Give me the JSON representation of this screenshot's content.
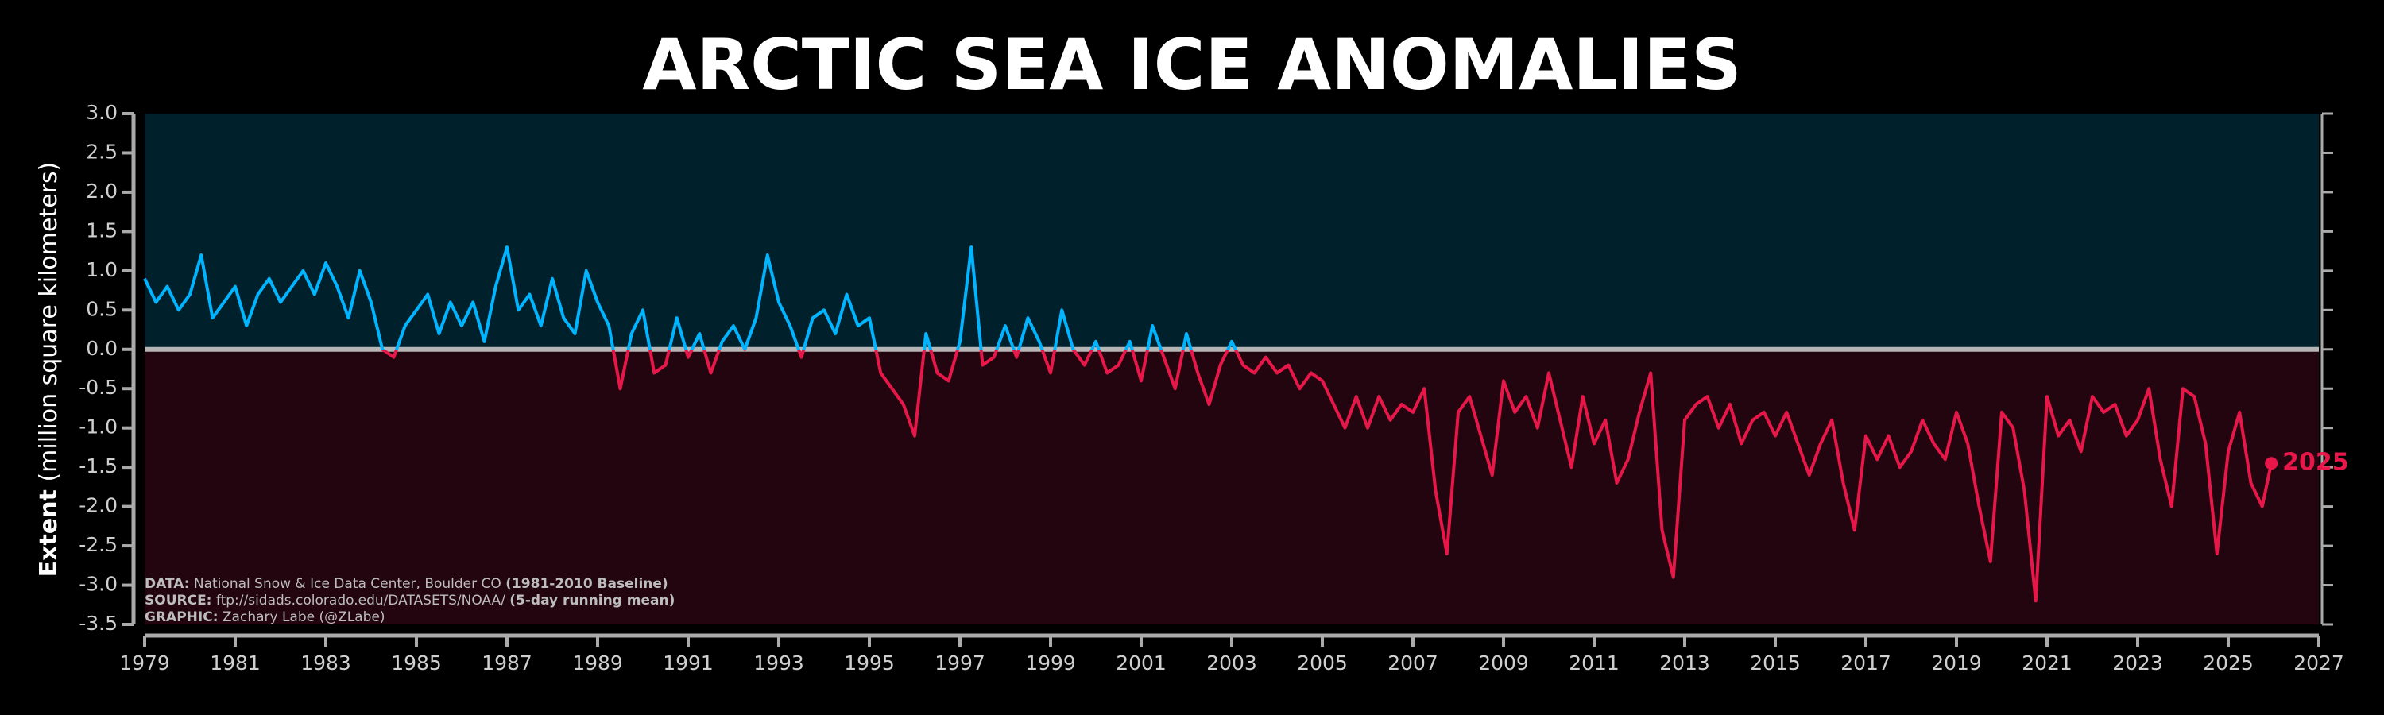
{
  "chart_data": {
    "type": "line",
    "title": "ARCTIC SEA ICE ANOMALIES",
    "ylabel_bold": "Extent",
    "ylabel": "(million square kilometers)",
    "end_label": "2025",
    "notes": [
      {
        "label": "DATA:",
        "text": "National Snow & Ice Data Center, Boulder CO",
        "extra": "(1981-2010 Baseline)"
      },
      {
        "label": "SOURCE:",
        "text": "ftp://sidads.colorado.edu/DATASETS/NOAA/",
        "extra": "(5-day running mean)"
      },
      {
        "label": "GRAPHIC:",
        "text": "Zachary Labe (@ZLabe)"
      }
    ],
    "xlim": [
      1979,
      2027
    ],
    "xticks": [
      1979,
      1981,
      1983,
      1985,
      1987,
      1989,
      1991,
      1993,
      1995,
      1997,
      1999,
      2001,
      2003,
      2005,
      2007,
      2009,
      2011,
      2013,
      2015,
      2017,
      2019,
      2021,
      2023,
      2025,
      2027
    ],
    "ylim": [
      -3.5,
      3
    ],
    "yticks": [
      {
        "value": -3.5,
        "label": "-3.5"
      },
      {
        "value": -3,
        "label": "-3.0"
      },
      -2.5,
      {
        "value": -2,
        "label": "-2.0"
      },
      -1.5,
      {
        "value": -1,
        "label": "-1.0"
      },
      -0.5,
      {
        "value": 0,
        "label": "0.0"
      },
      0.5,
      {
        "value": 1,
        "label": "1.0"
      },
      1.5,
      {
        "value": 2,
        "label": "2.0"
      },
      2.5,
      {
        "value": 3,
        "label": "3.0"
      }
    ],
    "series": [
      {
        "color": "#00b4ff",
        "negative_color": "#e8174a",
        "x": [
          1979,
          1979.25,
          1979.5,
          1979.75,
          1980,
          1980.25,
          1980.5,
          1980.75,
          1981,
          1981.25,
          1981.5,
          1981.75,
          1982,
          1982.25,
          1982.5,
          1982.75,
          1983,
          1983.25,
          1983.5,
          1983.75,
          1984,
          1984.25,
          1984.5,
          1984.75,
          1985,
          1985.25,
          1985.5,
          1985.75,
          1986,
          1986.25,
          1986.5,
          1986.75,
          1987,
          1987.25,
          1987.5,
          1987.75,
          1988,
          1988.25,
          1988.5,
          1988.75,
          1989,
          1989.25,
          1989.5,
          1989.75,
          1990,
          1990.25,
          1990.5,
          1990.75,
          1991,
          1991.25,
          1991.5,
          1991.75,
          1992,
          1992.25,
          1992.5,
          1992.75,
          1993,
          1993.25,
          1993.5,
          1993.75,
          1994,
          1994.25,
          1994.5,
          1994.75,
          1995,
          1995.25,
          1995.5,
          1995.75,
          1996,
          1996.25,
          1996.5,
          1996.75,
          1997,
          1997.25,
          1997.5,
          1997.75,
          1998,
          1998.25,
          1998.5,
          1998.75,
          1999,
          1999.25,
          1999.5,
          1999.75,
          2000,
          2000.25,
          2000.5,
          2000.75,
          2001,
          2001.25,
          2001.5,
          2001.75,
          2002,
          2002.25,
          2002.5,
          2002.75,
          2003,
          2003.25,
          2003.5,
          2003.75,
          2004,
          2004.25,
          2004.5,
          2004.75,
          2005,
          2005.25,
          2005.5,
          2005.75,
          2006,
          2006.25,
          2006.5,
          2006.75,
          2007,
          2007.25,
          2007.5,
          2007.75,
          2008,
          2008.25,
          2008.5,
          2008.75,
          2009,
          2009.25,
          2009.5,
          2009.75,
          2010,
          2010.25,
          2010.5,
          2010.75,
          2011,
          2011.25,
          2011.5,
          2011.75,
          2012,
          2012.25,
          2012.5,
          2012.75,
          2013,
          2013.25,
          2013.5,
          2013.75,
          2014,
          2014.25,
          2014.5,
          2014.75,
          2015,
          2015.25,
          2015.5,
          2015.75,
          2016,
          2016.25,
          2016.5,
          2016.75,
          2017,
          2017.25,
          2017.5,
          2017.75,
          2018,
          2018.25,
          2018.5,
          2018.75,
          2019,
          2019.25,
          2019.5,
          2019.75,
          2020,
          2020.25,
          2020.5,
          2020.75,
          2021,
          2021.25,
          2021.5,
          2021.75,
          2022,
          2022.25,
          2022.5,
          2022.75,
          2023,
          2023.25,
          2023.5,
          2023.75,
          2024,
          2024.25,
          2024.5,
          2024.75,
          2025,
          2025.25,
          2025.5,
          2025.75,
          2025.95
        ],
        "values": [
          0.9,
          0.6,
          0.8,
          0.5,
          0.7,
          1.2,
          0.4,
          0.6,
          0.8,
          0.3,
          0.7,
          0.9,
          0.6,
          0.8,
          1.0,
          0.7,
          1.1,
          0.8,
          0.4,
          1.0,
          0.6,
          0.0,
          -0.1,
          0.3,
          0.5,
          0.7,
          0.2,
          0.6,
          0.3,
          0.6,
          0.1,
          0.8,
          1.3,
          0.5,
          0.7,
          0.3,
          0.9,
          0.4,
          0.2,
          1.0,
          0.6,
          0.3,
          -0.5,
          0.2,
          0.5,
          -0.3,
          -0.2,
          0.4,
          -0.1,
          0.2,
          -0.3,
          0.1,
          0.3,
          0.0,
          0.4,
          1.2,
          0.6,
          0.3,
          -0.1,
          0.4,
          0.5,
          0.2,
          0.7,
          0.3,
          0.4,
          -0.3,
          -0.5,
          -0.7,
          -1.1,
          0.2,
          -0.3,
          -0.4,
          0.1,
          1.3,
          -0.2,
          -0.1,
          0.3,
          -0.1,
          0.4,
          0.1,
          -0.3,
          0.5,
          0.0,
          -0.2,
          0.1,
          -0.3,
          -0.2,
          0.1,
          -0.4,
          0.3,
          -0.1,
          -0.5,
          0.2,
          -0.3,
          -0.7,
          -0.2,
          0.1,
          -0.2,
          -0.3,
          -0.1,
          -0.3,
          -0.2,
          -0.5,
          -0.3,
          -0.4,
          -0.7,
          -1.0,
          -0.6,
          -1.0,
          -0.6,
          -0.9,
          -0.7,
          -0.8,
          -0.5,
          -1.8,
          -2.6,
          -0.8,
          -0.6,
          -1.1,
          -1.6,
          -0.4,
          -0.8,
          -0.6,
          -1.0,
          -0.3,
          -0.9,
          -1.5,
          -0.6,
          -1.2,
          -0.9,
          -1.7,
          -1.4,
          -0.8,
          -0.3,
          -2.3,
          -2.9,
          -0.9,
          -0.7,
          -0.6,
          -1.0,
          -0.7,
          -1.2,
          -0.9,
          -0.8,
          -1.1,
          -0.8,
          -1.2,
          -1.6,
          -1.2,
          -0.9,
          -1.7,
          -2.3,
          -1.1,
          -1.4,
          -1.1,
          -1.5,
          -1.3,
          -0.9,
          -1.2,
          -1.4,
          -0.8,
          -1.2,
          -2.0,
          -2.7,
          -0.8,
          -1.0,
          -1.8,
          -3.2,
          -0.6,
          -1.1,
          -0.9,
          -1.3,
          -0.6,
          -0.8,
          -0.7,
          -1.1,
          -0.9,
          -0.5,
          -1.4,
          -2.0,
          -0.5,
          -0.6,
          -1.2,
          -2.6,
          -1.3,
          -0.8,
          -1.7,
          -2.0,
          -1.45
        ]
      }
    ]
  }
}
